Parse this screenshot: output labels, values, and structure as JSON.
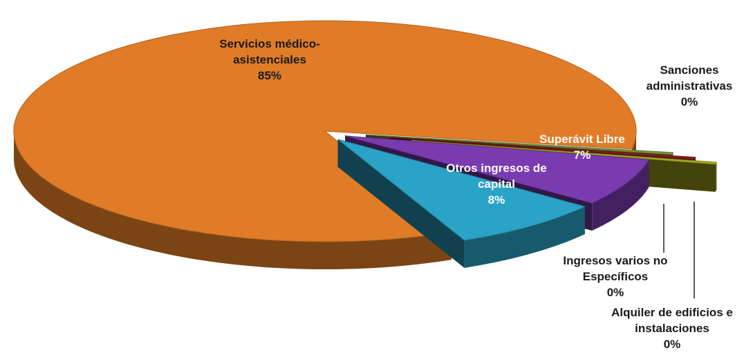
{
  "chart_data": {
    "type": "pie",
    "categories": [
      "Servicios médico-asistenciales",
      "Otros ingresos de capital",
      "Superávit Libre",
      "Sanciones administrativas",
      "Ingresos varios no Específicos",
      "Alquiler de edificios e instalaciones"
    ],
    "values": [
      85,
      8,
      7,
      0.3,
      0.3,
      0.3
    ],
    "value_labels": [
      "85%",
      "8%",
      "7%",
      "0%",
      "0%",
      "0%"
    ],
    "colors": [
      "#e07b27",
      "#2aa3c6",
      "#7a3bb0",
      "#77933c",
      "#8b1d1d",
      "#a8a81e"
    ]
  }
}
